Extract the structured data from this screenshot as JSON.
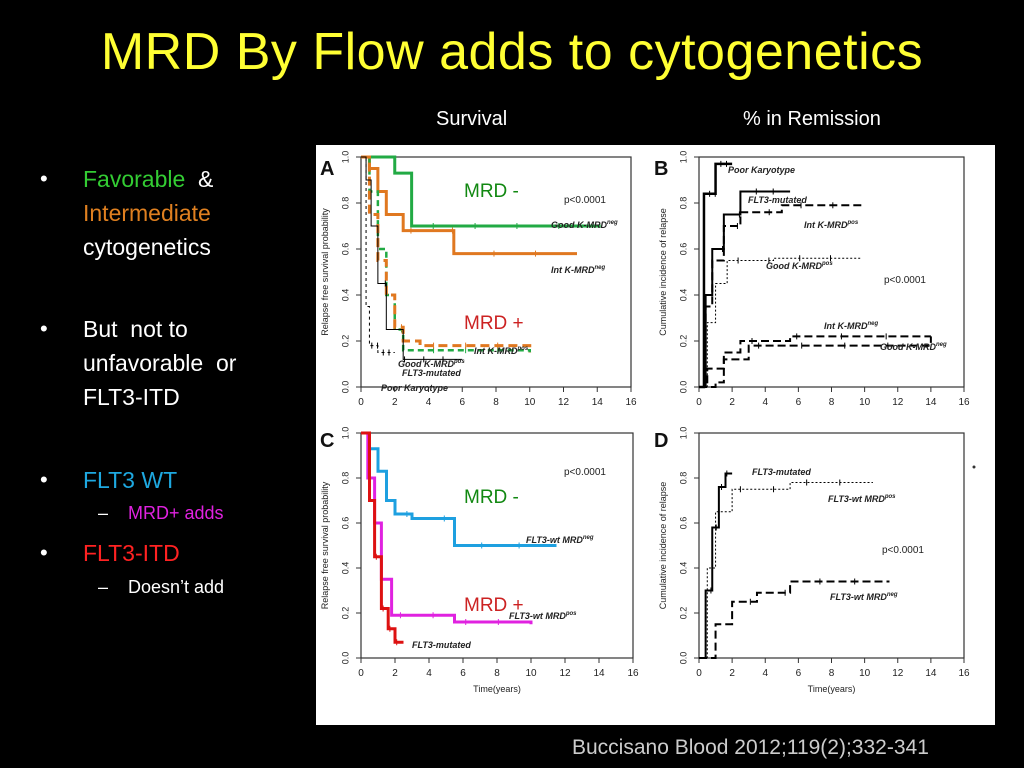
{
  "slide": {
    "title": "MRD By Flow adds to cytogenetics",
    "col_survival": "Survival",
    "col_remission": "% in Remission",
    "citation": "Buccisano Blood 2012;119(2);332-341"
  },
  "bullets": [
    {
      "level": 1,
      "segments": [
        {
          "text": "Favorable",
          "color": "#33cc33"
        },
        {
          "text": "  &",
          "color": "#ffffff"
        }
      ]
    },
    {
      "level": 1,
      "segments": [
        {
          "text": "Intermediate",
          "color": "#e08020"
        }
      ]
    },
    {
      "level": 1,
      "segments": [
        {
          "text": "cytogenetics",
          "color": "#ffffff"
        }
      ]
    },
    {
      "level": 1,
      "segments": [
        {
          "text": "But  not to",
          "color": "#ffffff"
        }
      ]
    },
    {
      "level": 1,
      "segments": [
        {
          "text": "unfavorable  or",
          "color": "#ffffff"
        }
      ]
    },
    {
      "level": 1,
      "segments": [
        {
          "text": "FLT3-ITD",
          "color": "#ffffff"
        }
      ]
    },
    {
      "level": 1,
      "segments": [
        {
          "text": "FLT3 WT",
          "color": "#1ea8e0"
        }
      ]
    },
    {
      "level": 2,
      "segments": [
        {
          "text": "MRD+ adds",
          "color": "#e022e0"
        }
      ]
    },
    {
      "level": 1,
      "segments": [
        {
          "text": "FLT3-ITD",
          "color": "#ff2222"
        }
      ]
    },
    {
      "level": 2,
      "segments": [
        {
          "text": "Doesn’t add",
          "color": "#ffffff"
        }
      ]
    }
  ],
  "chart_data": [
    {
      "panel": "A",
      "type": "line",
      "ylabel": "Relapse free survival probability",
      "xlabel": "",
      "xlim": [
        0,
        16
      ],
      "ylim": [
        0,
        1
      ],
      "xticks": [
        0,
        2,
        4,
        6,
        8,
        10,
        12,
        14,
        16
      ],
      "yticks": [
        "0.0",
        "0.2",
        "0.4",
        "0.6",
        "0.8",
        "1.0"
      ],
      "pvalue": "p<0.0001",
      "annotations": [
        {
          "text": "MRD -",
          "color": "#118811"
        },
        {
          "text": "MRD +",
          "color": "#cc2222"
        }
      ],
      "series": [
        {
          "name": "Good K-MRDneg",
          "color": "#22aa44",
          "width": 3,
          "x": [
            0,
            1.8,
            2.0,
            3.0,
            14.2
          ],
          "y": [
            1.0,
            1.0,
            0.93,
            0.7,
            0.7
          ]
        },
        {
          "name": "Int K-MRDneg",
          "color": "#e07820",
          "width": 3,
          "x": [
            0,
            0.5,
            1.0,
            1.5,
            2.5,
            5.5,
            12.8
          ],
          "y": [
            1.0,
            0.95,
            0.85,
            0.75,
            0.68,
            0.58,
            0.58
          ]
        },
        {
          "name": "Good K-MRDpos",
          "color": "#22aa44",
          "width": 2.5,
          "dash": "6,4",
          "x": [
            0,
            0.5,
            1.0,
            1.5,
            2.0,
            2.5,
            10.0
          ],
          "y": [
            1.0,
            0.85,
            0.6,
            0.4,
            0.25,
            0.16,
            0.15
          ]
        },
        {
          "name": "Int K-MRDpos",
          "color": "#e07820",
          "width": 3,
          "dash": "9,5",
          "x": [
            0,
            0.5,
            1.0,
            1.5,
            2.0,
            2.5,
            3.5,
            10.0
          ],
          "y": [
            1.0,
            0.75,
            0.55,
            0.4,
            0.26,
            0.2,
            0.18,
            0.15
          ]
        },
        {
          "name": "FLT3-mutated",
          "color": "#000000",
          "width": 1,
          "x": [
            0,
            0.3,
            0.6,
            1.0,
            1.5,
            2.5,
            6.0
          ],
          "y": [
            1.0,
            0.9,
            0.7,
            0.45,
            0.25,
            0.12,
            0.12
          ]
        },
        {
          "name": "Poor Karyotype",
          "color": "#000000",
          "width": 1,
          "dash": "3,3",
          "x": [
            0,
            0.3,
            0.5,
            1.0,
            2.0
          ],
          "y": [
            1.0,
            0.35,
            0.18,
            0.15,
            0.15
          ]
        }
      ]
    },
    {
      "panel": "B",
      "type": "line",
      "ylabel": "Cumulative incidence of relapse",
      "xlabel": "",
      "xlim": [
        0,
        16
      ],
      "ylim": [
        0,
        1
      ],
      "xticks": [
        0,
        2,
        4,
        6,
        8,
        10,
        12,
        14,
        16
      ],
      "yticks": [
        "0.0",
        "0.2",
        "0.4",
        "0.6",
        "0.8",
        "1.0"
      ],
      "pvalue": "p<0.0001",
      "series": [
        {
          "name": "Poor Karyotype",
          "color": "#000000",
          "width": 2.5,
          "x": [
            0,
            0.3,
            1.0,
            2.0
          ],
          "y": [
            0,
            0.84,
            0.97,
            0.97
          ]
        },
        {
          "name": "FLT3-mutated",
          "color": "#000000",
          "width": 2,
          "x": [
            0,
            0.4,
            0.8,
            1.5,
            2.5,
            5.5
          ],
          "y": [
            0,
            0.4,
            0.6,
            0.75,
            0.85,
            0.85
          ]
        },
        {
          "name": "Int K-MRDpos",
          "color": "#000000",
          "width": 2,
          "dash": "8,4",
          "x": [
            0,
            0.4,
            0.8,
            1.5,
            2.5,
            5.0,
            10.0
          ],
          "y": [
            0,
            0.35,
            0.55,
            0.7,
            0.76,
            0.79,
            0.79
          ]
        },
        {
          "name": "Good K-MRDpos",
          "color": "#000000",
          "width": 1,
          "dash": "2,2",
          "x": [
            0,
            0.5,
            1.0,
            1.7,
            4.5,
            9.8
          ],
          "y": [
            0,
            0.28,
            0.45,
            0.55,
            0.56,
            0.56
          ]
        },
        {
          "name": "Int K-MRDneg",
          "color": "#000000",
          "width": 2,
          "dash": "8,4",
          "x": [
            0,
            0.5,
            1.5,
            2.5,
            5.5,
            14.0
          ],
          "y": [
            0,
            0.08,
            0.15,
            0.2,
            0.22,
            0.22
          ]
        },
        {
          "name": "Good K-MRDneg",
          "color": "#000000",
          "width": 2,
          "dash": "8,4",
          "x": [
            0,
            1.0,
            1.5,
            3.0,
            14.0
          ],
          "y": [
            0,
            0.02,
            0.12,
            0.18,
            0.22
          ]
        }
      ]
    },
    {
      "panel": "C",
      "type": "line",
      "ylabel": "Relapse free survival probability",
      "xlabel": "Time(years)",
      "xlim": [
        0,
        16
      ],
      "ylim": [
        0,
        1
      ],
      "xticks": [
        0,
        2,
        4,
        6,
        8,
        10,
        12,
        14,
        16
      ],
      "yticks": [
        "0.0",
        "0.2",
        "0.4",
        "0.6",
        "0.8",
        "1.0"
      ],
      "pvalue": "p<0.0001",
      "annotations": [
        {
          "text": "MRD -",
          "color": "#118811"
        },
        {
          "text": "MRD +",
          "color": "#cc2222"
        }
      ],
      "series": [
        {
          "name": "FLT3-wt MRDneg",
          "color": "#1ea0e0",
          "width": 3,
          "x": [
            0,
            0.5,
            1.0,
            1.5,
            2.0,
            3.0,
            5.5,
            11.5
          ],
          "y": [
            1.0,
            0.93,
            0.83,
            0.7,
            0.64,
            0.62,
            0.5,
            0.5
          ]
        },
        {
          "name": "FLT3-wt MRDpos",
          "color": "#e022e0",
          "width": 3,
          "x": [
            0,
            0.4,
            0.8,
            1.2,
            1.8,
            5.5,
            10.0
          ],
          "y": [
            1.0,
            0.8,
            0.6,
            0.35,
            0.19,
            0.16,
            0.15
          ]
        },
        {
          "name": "FLT3-mutated",
          "color": "#dd1111",
          "width": 3,
          "x": [
            0,
            0.5,
            0.8,
            1.2,
            1.6,
            2.0,
            2.5
          ],
          "y": [
            1.0,
            0.7,
            0.45,
            0.22,
            0.13,
            0.07,
            0.07
          ]
        }
      ]
    },
    {
      "panel": "D",
      "type": "line",
      "ylabel": "Cumulative incidence of relapse",
      "xlabel": "Time(years)",
      "xlim": [
        0,
        16
      ],
      "ylim": [
        0,
        1
      ],
      "xticks": [
        0,
        2,
        4,
        6,
        8,
        10,
        12,
        14,
        16
      ],
      "yticks": [
        "0.0",
        "0.2",
        "0.4",
        "0.6",
        "0.8",
        "1.0"
      ],
      "pvalue": "p<0.0001",
      "series": [
        {
          "name": "FLT3-mutated",
          "color": "#000000",
          "width": 2,
          "x": [
            0,
            0.4,
            0.8,
            1.2,
            1.6,
            2.0
          ],
          "y": [
            0,
            0.3,
            0.58,
            0.76,
            0.82,
            0.82
          ]
        },
        {
          "name": "FLT3-wt MRDpos",
          "color": "#000000",
          "width": 1,
          "dash": "2,2",
          "x": [
            0,
            0.5,
            1.0,
            2.0,
            5.5,
            10.5
          ],
          "y": [
            0,
            0.4,
            0.65,
            0.75,
            0.78,
            0.78
          ]
        },
        {
          "name": "FLT3-wt MRDneg",
          "color": "#000000",
          "width": 2,
          "dash": "8,4",
          "x": [
            0,
            1.0,
            2.0,
            3.5,
            5.5,
            11.5
          ],
          "y": [
            0,
            0.15,
            0.25,
            0.29,
            0.34,
            0.34
          ]
        }
      ]
    }
  ]
}
